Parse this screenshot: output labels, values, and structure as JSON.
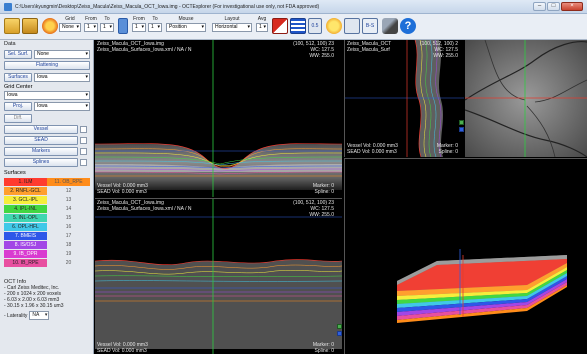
{
  "window": {
    "title": "C:\\Users\\kyungmin\\Desktop\\Zeiss_Macula\\Zeiss_Macula_OCT_Iowa.img - OCTExplorer (For investigational use only, not FDA approved)",
    "minimize": "–",
    "maximize": "□",
    "close": "×"
  },
  "toolbar": {
    "grid_label": "Grid",
    "grid_value": "None",
    "from_label": "From",
    "to_label": "To",
    "from_value": "1",
    "to_value": "1",
    "from2_label": "From",
    "to2_label": "To",
    "from2_value": "1",
    "to2_value": "1",
    "mouse_label": "Mouse",
    "mouse_value": "Position",
    "layout_label": "Layout",
    "layout_value": "Horizontal",
    "avg_label": "Avg",
    "avg_value": "1",
    "scale_label": "0.5",
    "bscan_label": "B-S"
  },
  "left_panel": {
    "data_heading": "Data",
    "sel_surf_button": "Sel. Surf.",
    "sel_surf_value": "None",
    "flattening_button": "Flattening",
    "surfaces_button": "Surfaces",
    "surfaces_value": "Iowa",
    "grid_center_heading": "Grid Center",
    "grid_center_value": "Iowa",
    "proj_button": "Proj.",
    "proj_value": "Iowa",
    "diff_button": "Diff.",
    "vessel_button": "Vessel",
    "sead_button": "SEAD",
    "markers_button": "Markers",
    "splines_button": "Splines",
    "surfaces_heading": "Surfaces",
    "oct_info_heading": "OCT Info",
    "oct_info_lines": [
      "- Carl Zeiss Meditec, Inc.",
      "- 200 x 1024 x 200 voxels",
      "- 6.03 x 2.00 x 6.03 mm3",
      "- 30.15 x 1.96 x 30.15 um3"
    ],
    "laterality_label": "- Laterality",
    "laterality_value": "NA"
  },
  "surfaces": [
    {
      "left": "1. ILM",
      "right": "11. OB_RPE",
      "left_color": "#ff3b2f",
      "right_color": "#ff8c1a"
    },
    {
      "left": "2. RNFL-GCL",
      "right": "12",
      "left_color": "#ff9f2e",
      "right_color": "#e4e8ee"
    },
    {
      "left": "3. GCL-IPL",
      "right": "13",
      "left_color": "#f6ee3c",
      "right_color": "#e4e8ee"
    },
    {
      "left": "4. IPL-INL",
      "right": "14",
      "left_color": "#42d742",
      "right_color": "#e4e8ee"
    },
    {
      "left": "5. INL-OPL",
      "right": "15",
      "left_color": "#3fd6b0",
      "right_color": "#e4e8ee"
    },
    {
      "left": "6. OPL-HFL",
      "right": "16",
      "left_color": "#40c8e8",
      "right_color": "#e4e8ee"
    },
    {
      "left": "7. BMEIS",
      "right": "17",
      "left_color": "#2e57e8",
      "right_color": "#e4e8ee"
    },
    {
      "left": "8. IS/OSJ",
      "right": "18",
      "left_color": "#a246e6",
      "right_color": "#e4e8ee"
    },
    {
      "left": "9. IB_OPR",
      "right": "19",
      "left_color": "#d93bd0",
      "right_color": "#e4e8ee"
    },
    {
      "left": "10. IB_RPE",
      "right": "20",
      "left_color": "#e84fa0",
      "right_color": "#e4e8ee"
    }
  ],
  "view_top": {
    "file1": "Zeiss_Macula_OCT_Iowa.img",
    "file2": "Zeiss_Macula_Surfaces_Iowa.xml / NA / N",
    "coords": "(100, 512, 100) 23",
    "wc": "WC: 127.5",
    "ww": "WW: 255.0",
    "vessel_vol": "Vessel Vol: 0.000 mm3",
    "sead_vol": "SEAD Vol: 0.000 mm3",
    "marker": "Marker: 0",
    "spline": "Spline: 0"
  },
  "view_bottom": {
    "file1": "Zeiss_Macula_OCT_Iowa.img",
    "file2": "Zeiss_Macula_Surfaces_Iowa.xml / NA / N",
    "coords": "(100, 512, 100) 23",
    "wc": "WC: 127.5",
    "ww": "WW: 255.0",
    "vessel_vol": "Vessel Vol: 0.000 mm3",
    "sead_vol": "SEAD Vol: 0.000 mm3",
    "marker": "Marker: 0",
    "spline": "Spline: 0"
  },
  "view_side": {
    "file1": "Zeiss_Macula_OCT",
    "file2": "Zeiss_Macula_Surf",
    "coords": "(100, 512, 100) 2",
    "wc": "WC: 127.5",
    "ww": "WW: 255.0",
    "vessel_vol": "Vessel Vol: 0.000 mm3",
    "sead_vol": "SEAD Vol: 0.000 mm3",
    "marker": "Marker: 0",
    "spline": "Spline: 0"
  },
  "colors": {
    "crosshair_green": "#2ecc40",
    "crosshair_red": "#e23b2e",
    "crosshair_blue": "#2f5fe0"
  }
}
